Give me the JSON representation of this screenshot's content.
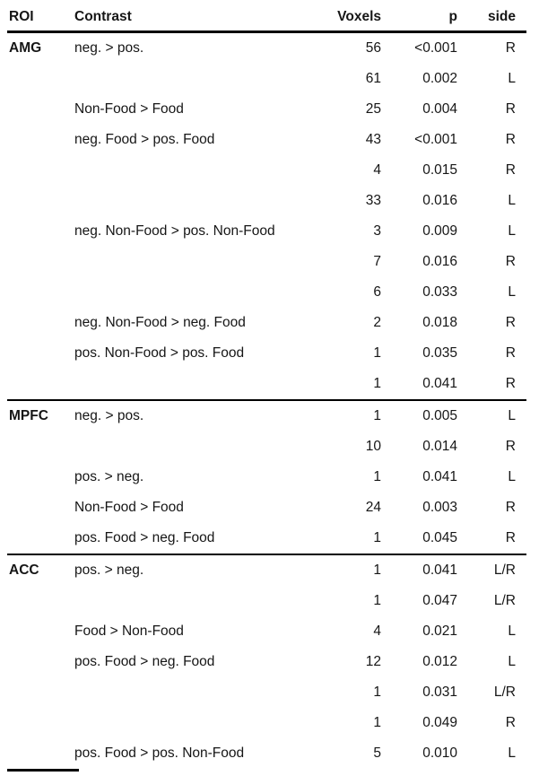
{
  "page": {
    "background_color": "#ffffff",
    "text_color": "#161616",
    "rule_color": "#000000"
  },
  "table": {
    "columns": [
      "ROI",
      "Contrast",
      "Voxels",
      "p",
      "side"
    ],
    "sections": [
      {
        "roi": "AMG",
        "rows": [
          {
            "contrast": "neg. > pos.",
            "voxels": "56",
            "p": "<0.001",
            "side": "R"
          },
          {
            "contrast": "",
            "voxels": "61",
            "p": "0.002",
            "side": "L"
          },
          {
            "contrast": "Non-Food > Food",
            "voxels": "25",
            "p": "0.004",
            "side": "R"
          },
          {
            "contrast": "neg. Food > pos. Food",
            "voxels": "43",
            "p": "<0.001",
            "side": "R"
          },
          {
            "contrast": "",
            "voxels": "4",
            "p": "0.015",
            "side": "R"
          },
          {
            "contrast": "",
            "voxels": "33",
            "p": "0.016",
            "side": "L"
          },
          {
            "contrast": "neg. Non-Food > pos. Non-Food",
            "voxels": "3",
            "p": "0.009",
            "side": "L"
          },
          {
            "contrast": "",
            "voxels": "7",
            "p": "0.016",
            "side": "R"
          },
          {
            "contrast": "",
            "voxels": "6",
            "p": "0.033",
            "side": "L"
          },
          {
            "contrast": "neg. Non-Food > neg. Food",
            "voxels": "2",
            "p": "0.018",
            "side": "R"
          },
          {
            "contrast": "pos. Non-Food > pos. Food",
            "voxels": "1",
            "p": "0.035",
            "side": "R"
          },
          {
            "contrast": "",
            "voxels": "1",
            "p": "0.041",
            "side": "R"
          }
        ]
      },
      {
        "roi": "MPFC",
        "rows": [
          {
            "contrast": "neg. > pos.",
            "voxels": "1",
            "p": "0.005",
            "side": "L"
          },
          {
            "contrast": "",
            "voxels": "10",
            "p": "0.014",
            "side": "R"
          },
          {
            "contrast": "pos. > neg.",
            "voxels": "1",
            "p": "0.041",
            "side": "L"
          },
          {
            "contrast": "Non-Food > Food",
            "voxels": "24",
            "p": "0.003",
            "side": "R"
          },
          {
            "contrast": "pos. Food > neg. Food",
            "voxels": "1",
            "p": "0.045",
            "side": "R"
          }
        ]
      },
      {
        "roi": "ACC",
        "rows": [
          {
            "contrast": "pos. > neg.",
            "voxels": "1",
            "p": "0.041",
            "side": "L/R"
          },
          {
            "contrast": "",
            "voxels": "1",
            "p": "0.047",
            "side": "L/R"
          },
          {
            "contrast": "Food > Non-Food",
            "voxels": "4",
            "p": "0.021",
            "side": "L"
          },
          {
            "contrast": "pos. Food > neg. Food",
            "voxels": "12",
            "p": "0.012",
            "side": "L"
          },
          {
            "contrast": "",
            "voxels": "1",
            "p": "0.031",
            "side": "L/R"
          },
          {
            "contrast": "",
            "voxels": "1",
            "p": "0.049",
            "side": "R"
          },
          {
            "contrast": "pos. Food > pos. Non-Food",
            "voxels": "5",
            "p": "0.010",
            "side": "L"
          }
        ]
      }
    ]
  }
}
